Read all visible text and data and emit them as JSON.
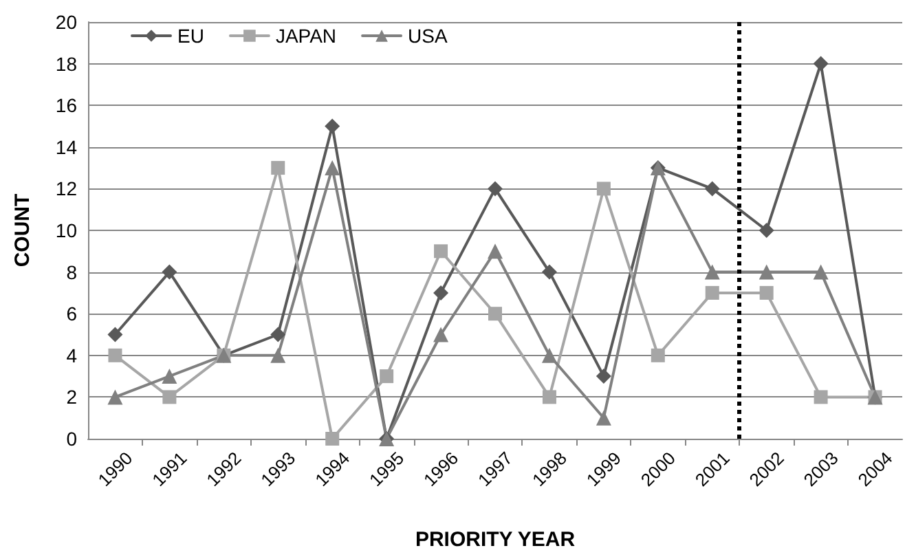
{
  "chart_data": {
    "type": "line",
    "xlabel": "PRIORITY YEAR",
    "ylabel": "COUNT",
    "x": [
      1990,
      1991,
      1992,
      1993,
      1994,
      1995,
      1996,
      1997,
      1998,
      1999,
      2000,
      2001,
      2002,
      2003,
      2004
    ],
    "series": [
      {
        "name": "EU",
        "color": "#595959",
        "marker": "diamond",
        "values": [
          5,
          8,
          4,
          5,
          15,
          0,
          7,
          12,
          8,
          3,
          13,
          12,
          10,
          18,
          2
        ]
      },
      {
        "name": "JAPAN",
        "color": "#a6a6a6",
        "marker": "square",
        "values": [
          4,
          2,
          4,
          13,
          0,
          3,
          9,
          6,
          2,
          12,
          4,
          7,
          7,
          2,
          2
        ]
      },
      {
        "name": "USA",
        "color": "#808080",
        "marker": "triangle",
        "values": [
          2,
          3,
          4,
          4,
          13,
          0,
          5,
          9,
          4,
          1,
          13,
          8,
          8,
          8,
          2
        ]
      }
    ],
    "xlim": [
      1989.5,
      2004.5
    ],
    "xticks": [
      1990,
      1991,
      1992,
      1993,
      1994,
      1995,
      1996,
      1997,
      1998,
      1999,
      2000,
      2001,
      2002,
      2003,
      2004
    ],
    "ylim": [
      0,
      20
    ],
    "yticks": [
      0,
      2,
      4,
      6,
      8,
      10,
      12,
      14,
      16,
      18,
      20
    ],
    "grid": "y",
    "legend": "top left",
    "line_style": "solid",
    "ref_lines": [
      {
        "axis": "x",
        "value": 2001.5,
        "color": "#000000",
        "line_style": "dotted"
      }
    ]
  }
}
